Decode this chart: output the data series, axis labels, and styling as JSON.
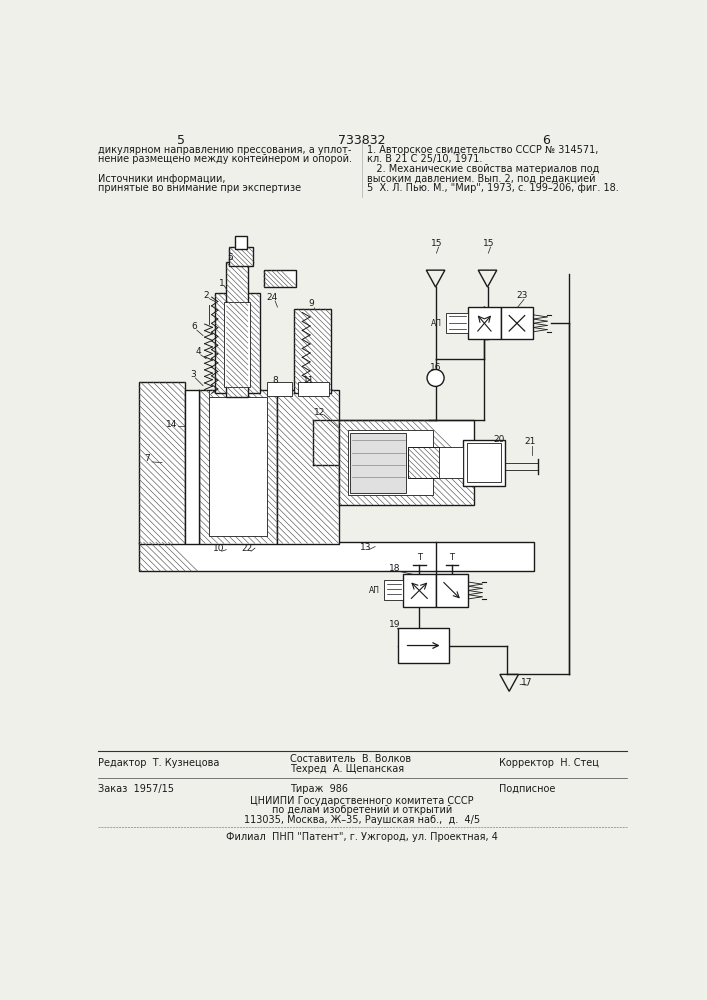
{
  "page_number_left": "5",
  "page_number_center": "733832",
  "page_number_right": "6",
  "left_col": [
    "дикулярном направлению прессования, а уплот-",
    "нение размещено между контейнером и опорой.",
    "",
    "Источники информации,",
    "принятые во внимание при экспертизе"
  ],
  "right_col": [
    "1. Авторское свидетельство СССР № 314571,",
    "кл. В 21 С 25/10, 1971.",
    "   2. Механические свойства материалов под",
    "высоким давлением. Вып. 2, под редакцией",
    "5  Х. Л. Пью. М., \"Мир\", 1973, с. 199–206, фиг. 18."
  ],
  "footer_editor": "Редактор  Т. Кузнецова",
  "footer_compiler_line1": "Составитель  В. Волков",
  "footer_compiler_line2": "Техред  А. Щепанская",
  "footer_corrector": "Корректор  Н. Стец",
  "footer_order": "Заказ  1957/15",
  "footer_circulation": "Тираж  986",
  "footer_signed": "Подписное",
  "footer_org1": "ЦНИИПИ Государственного комитета СССР",
  "footer_org2": "по делам изобретений и открытий",
  "footer_org3": "113035, Москва, Ж–35, Раушская наб.,  д.  4/5",
  "footer_branch": "Филиал  ПНП \"Патент\", г. Ужгород, ул. Проектная, 4",
  "bg_color": "#f0f0eb",
  "lc": "#1a1a1a"
}
